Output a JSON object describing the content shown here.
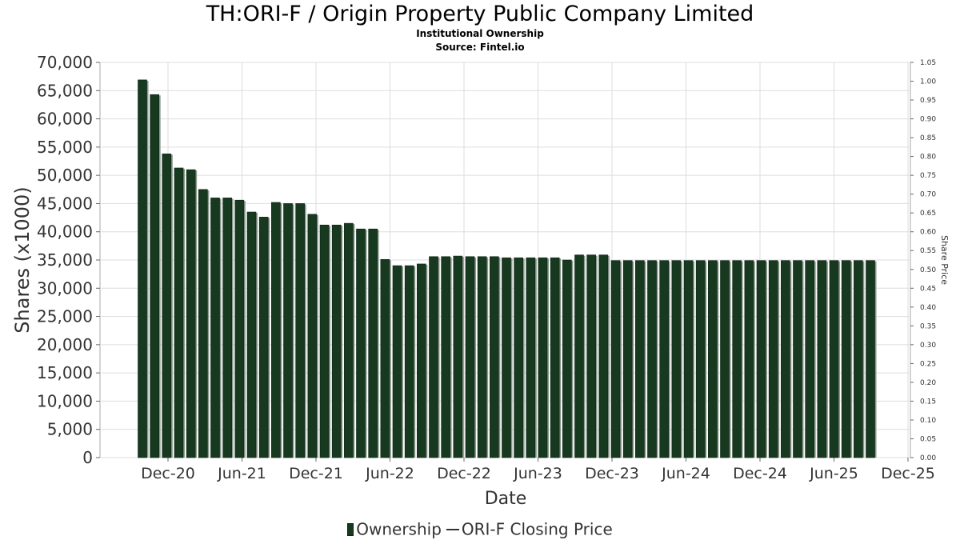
{
  "title": "TH:ORI-F / Origin Property Public Company Limited",
  "subtitle": "Institutional Ownership",
  "source": "Source: Fintel.io",
  "legend": {
    "ownership": "Ownership",
    "price": "ORI-F Closing Price"
  },
  "colors": {
    "bar": "#17391f",
    "bar_shadow": "#8a9a8c",
    "grid": "#dddddd"
  },
  "chart_data": {
    "type": "bar",
    "xlabel": "Date",
    "ylabel": "Shares (x1000)",
    "y2label": "Share Price",
    "ylim": [
      0,
      70000
    ],
    "y2lim": [
      0,
      1.05
    ],
    "yticks": [
      "0",
      "5,000",
      "10,000",
      "15,000",
      "20,000",
      "25,000",
      "30,000",
      "35,000",
      "40,000",
      "45,000",
      "50,000",
      "55,000",
      "60,000",
      "65,000",
      "70,000"
    ],
    "y2ticks": [
      "0.00",
      "0.05",
      "0.10",
      "0.15",
      "0.20",
      "0.25",
      "0.30",
      "0.35",
      "0.40",
      "0.45",
      "0.50",
      "0.55",
      "0.60",
      "0.65",
      "0.70",
      "0.75",
      "0.80",
      "0.85",
      "0.90",
      "0.95",
      "1.00",
      "1.05"
    ],
    "xticks": [
      "Dec-20",
      "Jun-21",
      "Dec-21",
      "Jun-22",
      "Dec-22",
      "Jun-23",
      "Dec-23",
      "Jun-24",
      "Dec-24",
      "Jun-25",
      "Dec-25"
    ],
    "grid": true,
    "legend_position": "bottom",
    "series": [
      {
        "name": "Ownership",
        "values": [
          66900,
          64300,
          53800,
          51300,
          51000,
          47500,
          46000,
          46000,
          45600,
          43500,
          42600,
          45200,
          45000,
          45000,
          43100,
          41200,
          41200,
          41500,
          40500,
          40500,
          35100,
          34000,
          34000,
          34300,
          35600,
          35600,
          35700,
          35600,
          35600,
          35600,
          35400,
          35400,
          35400,
          35400,
          35400,
          35000,
          35900,
          35900,
          35900,
          34900,
          34900,
          34900,
          34900,
          34900,
          34900,
          34900,
          34900,
          34900,
          34900,
          34900,
          34900,
          34900,
          34900,
          34900,
          34900,
          34900,
          34900,
          34900,
          34900,
          34900,
          34900
        ]
      }
    ]
  }
}
